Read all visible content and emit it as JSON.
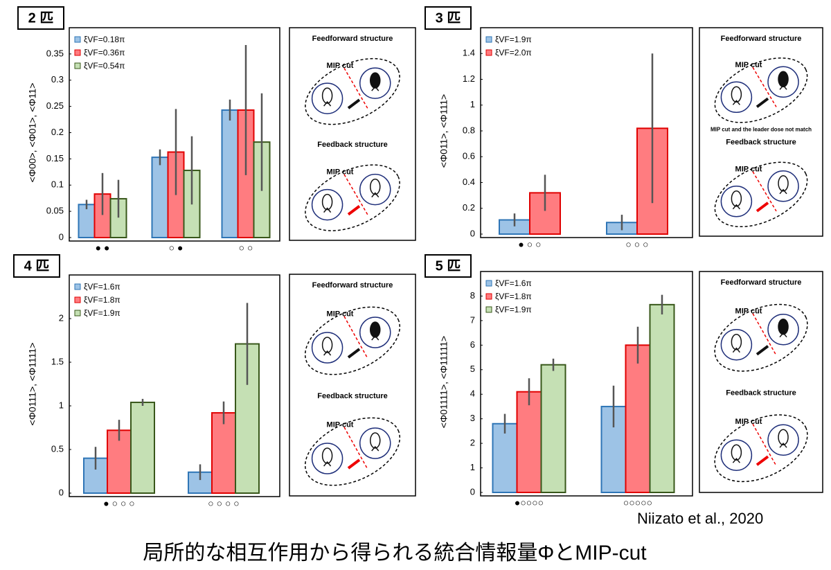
{
  "chart_data": [
    {
      "type": "bar",
      "panel": "2 匹",
      "ylabel": "<Φ00>, <Φ01>, <Φ11>",
      "categories": [
        "● ●",
        "○ ●",
        "○ ○"
      ],
      "ylim": [
        0,
        0.4
      ],
      "yticks": [
        0,
        0.05,
        0.1,
        0.15,
        0.2,
        0.25,
        0.3,
        0.35
      ],
      "series": [
        {
          "name": "ξVF=0.18π",
          "color": "#9dc3e6",
          "edgecolor": "#2e75b6",
          "values": [
            0.063,
            0.153,
            0.243
          ],
          "errors": [
            0.009,
            0.015,
            0.02
          ]
        },
        {
          "name": "ξVF=0.36π",
          "color": "#ff7c80",
          "edgecolor": "#e00000",
          "values": [
            0.083,
            0.163,
            0.243
          ],
          "errors": [
            0.04,
            0.082,
            0.124
          ]
        },
        {
          "name": "ξVF=0.54π",
          "color": "#c5e0b4",
          "edgecolor": "#38571a",
          "values": [
            0.074,
            0.128,
            0.182
          ],
          "errors": [
            0.036,
            0.065,
            0.093
          ]
        }
      ]
    },
    {
      "type": "bar",
      "panel": "3 匹",
      "ylabel": "<Φ011>, <Φ111>",
      "categories": [
        "● ○ ○",
        "○ ○ ○"
      ],
      "ylim": [
        0,
        1.6
      ],
      "yticks": [
        0,
        0.2,
        0.4,
        0.6,
        0.8,
        1,
        1.2,
        1.4
      ],
      "series": [
        {
          "name": "ξVF=1.9π",
          "color": "#9dc3e6",
          "edgecolor": "#2e75b6",
          "values": [
            0.11,
            0.09
          ],
          "errors": [
            0.05,
            0.06
          ]
        },
        {
          "name": "ξVF=2.0π",
          "color": "#ff7c80",
          "edgecolor": "#e00000",
          "values": [
            0.32,
            0.82
          ],
          "errors": [
            0.14,
            0.58
          ]
        }
      ]
    },
    {
      "type": "bar",
      "panel": "4 匹",
      "ylabel": "<Φ0111>, <Φ1111>",
      "categories": [
        "● ○ ○ ○",
        "○ ○ ○ ○"
      ],
      "ylim": [
        0,
        2.5
      ],
      "yticks": [
        0,
        0.5,
        1,
        1.5,
        2
      ],
      "series": [
        {
          "name": "ξVF=1.6π",
          "color": "#9dc3e6",
          "edgecolor": "#2e75b6",
          "values": [
            0.4,
            0.24
          ],
          "errors": [
            0.13,
            0.09
          ]
        },
        {
          "name": "ξVF=1.8π",
          "color": "#ff7c80",
          "edgecolor": "#e00000",
          "values": [
            0.72,
            0.92
          ],
          "errors": [
            0.12,
            0.13
          ]
        },
        {
          "name": "ξVF=1.9π",
          "color": "#c5e0b4",
          "edgecolor": "#38571a",
          "values": [
            1.04,
            1.71
          ],
          "errors": [
            0.04,
            0.47
          ]
        }
      ]
    },
    {
      "type": "bar",
      "panel": "5 匹",
      "ylabel": "<Φ01111>, <Φ11111>",
      "categories": [
        "●○○○○",
        "○○○○○"
      ],
      "ylim": [
        0,
        9
      ],
      "yticks": [
        0,
        1,
        2,
        3,
        4,
        5,
        6,
        7,
        8
      ],
      "series": [
        {
          "name": "ξVF=1.6π",
          "color": "#9dc3e6",
          "edgecolor": "#2e75b6",
          "values": [
            2.8,
            3.5
          ],
          "errors": [
            0.4,
            0.85
          ]
        },
        {
          "name": "ξVF=1.8π",
          "color": "#ff7c80",
          "edgecolor": "#e00000",
          "values": [
            4.1,
            6.0
          ],
          "errors": [
            0.55,
            0.75
          ]
        },
        {
          "name": "ξVF=1.9π",
          "color": "#c5e0b4",
          "edgecolor": "#38571a",
          "values": [
            5.2,
            7.65
          ],
          "errors": [
            0.25,
            0.4
          ]
        }
      ]
    }
  ],
  "diagrams": [
    {
      "top_title": "Feedforward structure",
      "top_cut": "MIP cut",
      "bottom_title": "Feedback structure",
      "bottom_cut": "MIP cut"
    },
    {
      "top_title": "Feedforward structure",
      "top_cut": "MIP cut",
      "note": "MIP cut and the leader dose not match",
      "bottom_title": "Feedback structure",
      "bottom_cut": "MIP cut"
    },
    {
      "top_title": "Feedforward structure",
      "top_cut": "MIP cut",
      "bottom_title": "Feedback structure",
      "bottom_cut": "MIP cut"
    },
    {
      "top_title": "Feedforward structure",
      "top_cut": "MIP cut",
      "bottom_title": "Feedback structure",
      "bottom_cut": "MIP cut"
    }
  ],
  "citation": "Niizato et al., 2020",
  "title": "局所的な相互作用から得られる統合情報量ΦとMIP-cut"
}
